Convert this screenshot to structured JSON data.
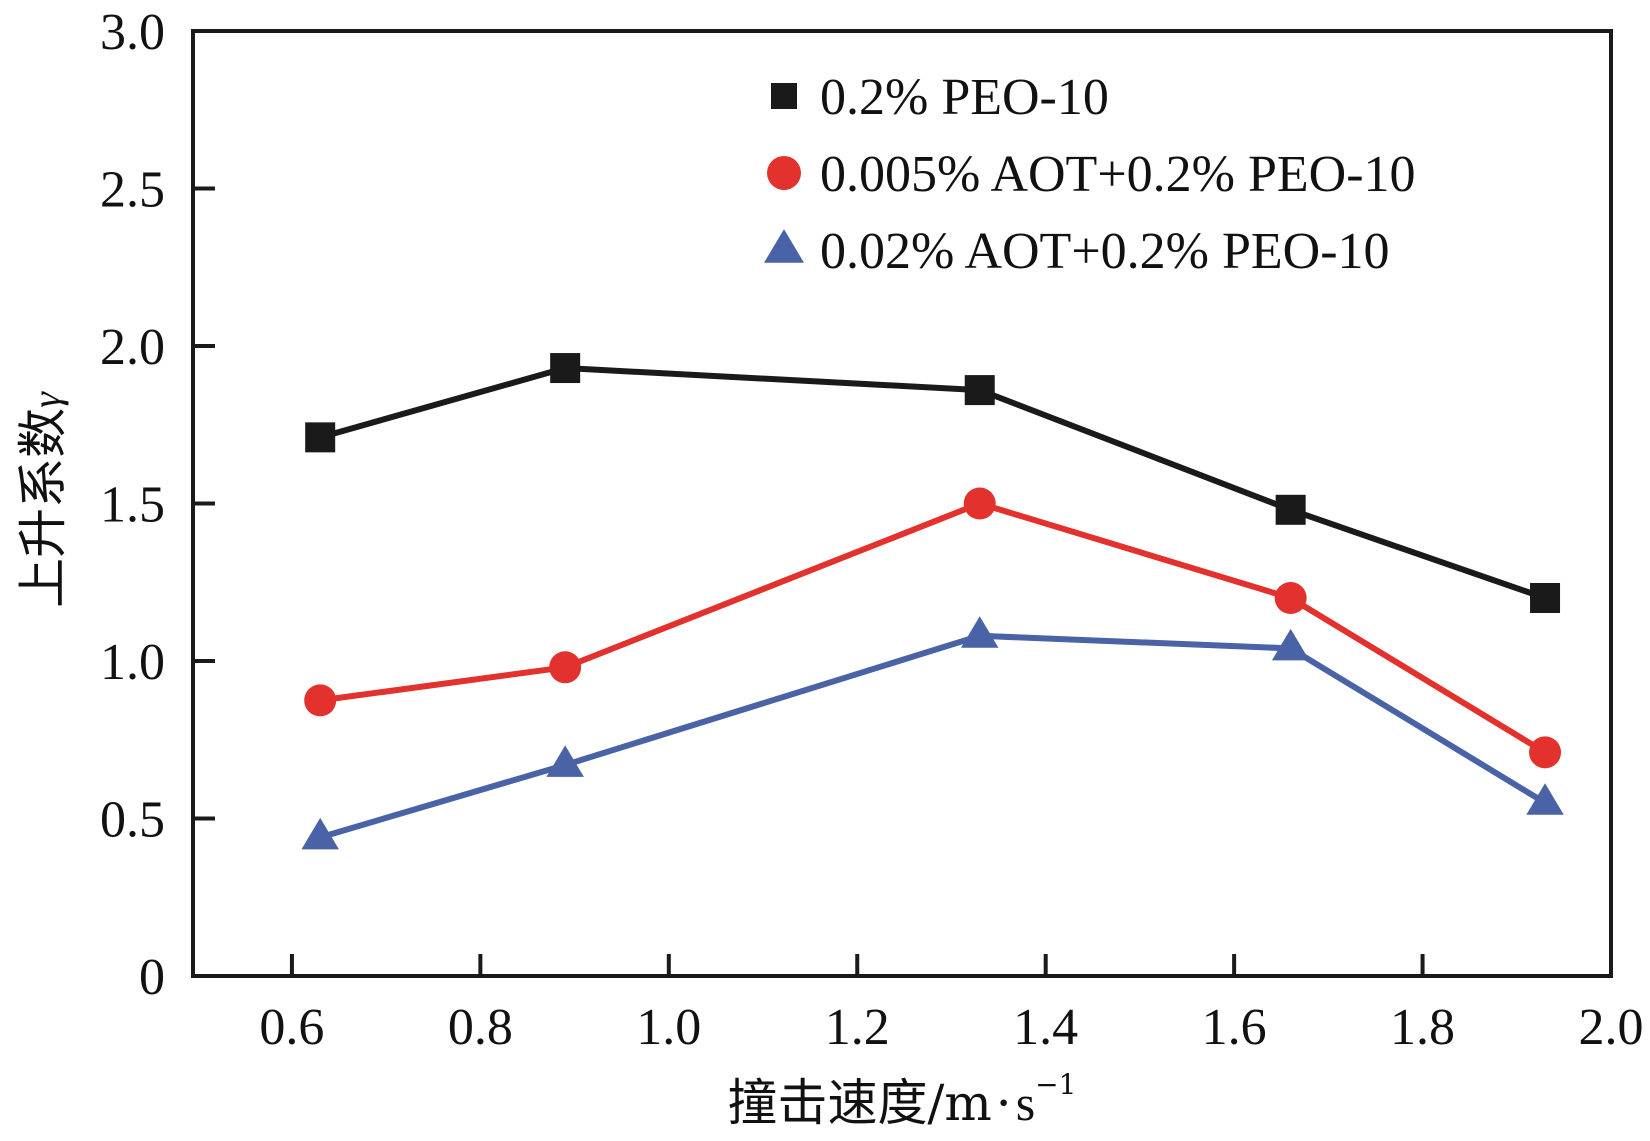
{
  "chart_data": {
    "type": "line",
    "title": "",
    "xlabel": "撞击速度/m·s⁻¹",
    "xlabel_main": "撞击速度/m",
    "xlabel_dot": "·",
    "xlabel_unit": "s",
    "xlabel_sup": "−1",
    "ylabel": "上升系数γ",
    "ylabel_main": "上升系数",
    "ylabel_symbol": "γ",
    "xlim": [
      0.495,
      2.0
    ],
    "ylim": [
      0,
      3.0
    ],
    "xticks": [
      0.6,
      0.8,
      1.0,
      1.2,
      1.4,
      1.6,
      1.8,
      2.0
    ],
    "xtick_labels": [
      "0.6",
      "0.8",
      "1.0",
      "1.2",
      "1.4",
      "1.6",
      "1.8",
      "2.0"
    ],
    "yticks": [
      0,
      0.5,
      1.0,
      1.5,
      2.0,
      2.5,
      3.0
    ],
    "ytick_labels": [
      "0",
      "0.5",
      "1.0",
      "1.5",
      "2.0",
      "2.5",
      "3.0"
    ],
    "grid": false,
    "legend_position": "top-right",
    "x": [
      0.63,
      0.89,
      1.33,
      1.66,
      1.93
    ],
    "series": [
      {
        "name": "0.2% PEO-10",
        "marker": "square",
        "color": "#1a1a1a",
        "values": [
          1.71,
          1.93,
          1.86,
          1.48,
          1.2
        ]
      },
      {
        "name": "0.005% AOT+0.2% PEO-10",
        "marker": "circle",
        "color": "#e3312d",
        "values": [
          0.875,
          0.98,
          1.5,
          1.2,
          0.71
        ]
      },
      {
        "name": "0.02% AOT+0.2% PEO-10",
        "marker": "triangle",
        "color": "#4a62a6",
        "values": [
          0.44,
          0.67,
          1.08,
          1.04,
          0.55
        ]
      }
    ]
  }
}
